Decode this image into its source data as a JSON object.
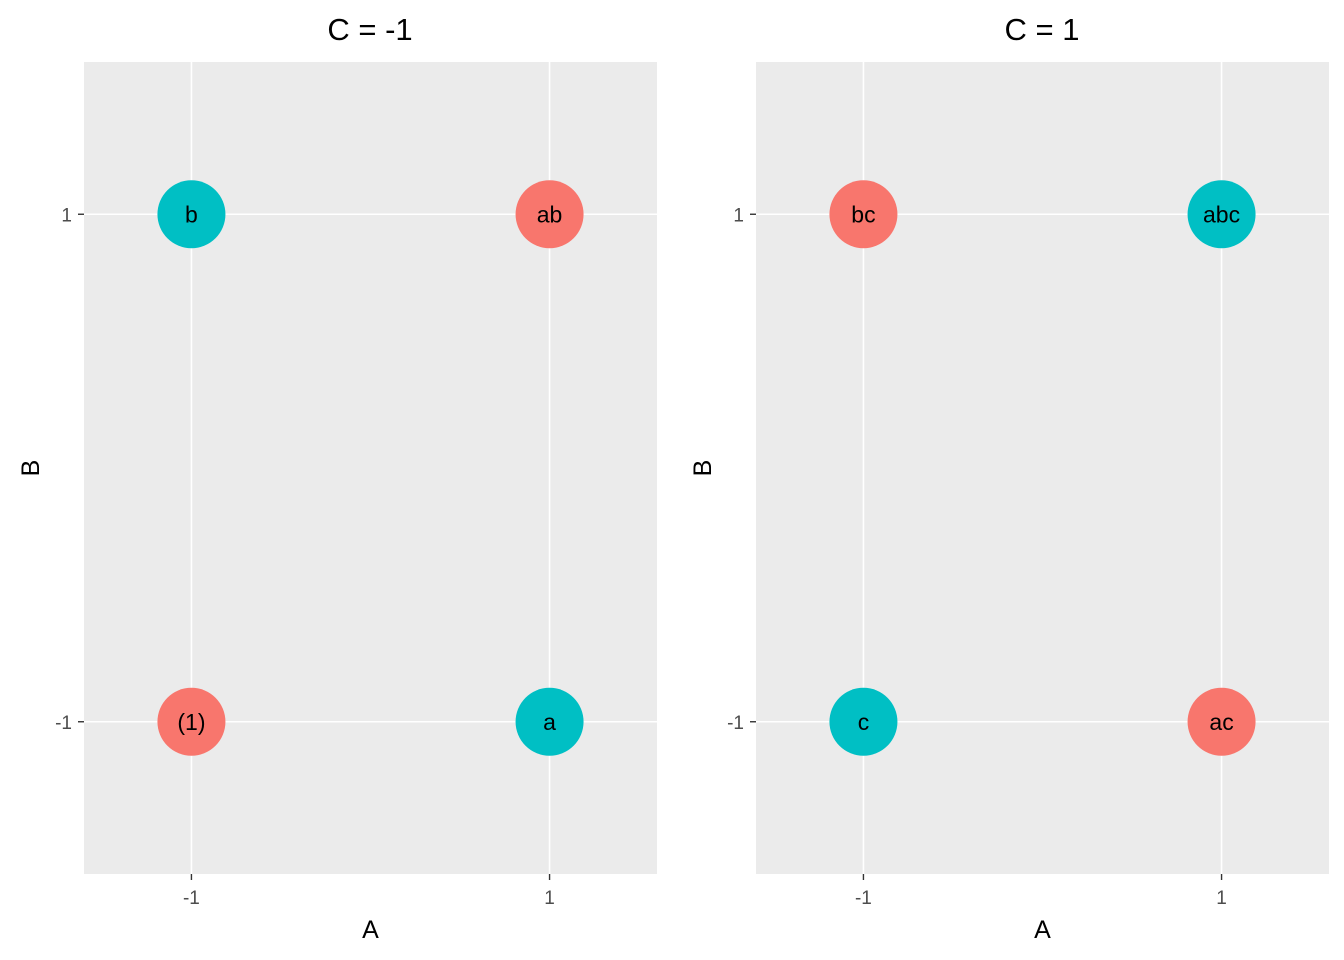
{
  "chart_data": [
    {
      "type": "scatter",
      "title": "C = -1",
      "xlabel": "A",
      "ylabel": "B",
      "x_ticks": [
        "-1",
        "1"
      ],
      "y_ticks": [
        "-1",
        "1"
      ],
      "xlim": [
        -1.6,
        1.6
      ],
      "ylim": [
        -1.6,
        1.6
      ],
      "grid": true,
      "legend": "none",
      "points": [
        {
          "x": -1,
          "y": 1,
          "label": "b",
          "color": "#00BFC4"
        },
        {
          "x": 1,
          "y": 1,
          "label": "ab",
          "color": "#F8766D"
        },
        {
          "x": -1,
          "y": -1,
          "label": "(1)",
          "color": "#F8766D"
        },
        {
          "x": 1,
          "y": -1,
          "label": "a",
          "color": "#00BFC4"
        }
      ]
    },
    {
      "type": "scatter",
      "title": "C = 1",
      "xlabel": "A",
      "ylabel": "B",
      "x_ticks": [
        "-1",
        "1"
      ],
      "y_ticks": [
        "-1",
        "1"
      ],
      "xlim": [
        -1.6,
        1.6
      ],
      "ylim": [
        -1.6,
        1.6
      ],
      "grid": true,
      "legend": "none",
      "points": [
        {
          "x": -1,
          "y": 1,
          "label": "bc",
          "color": "#F8766D"
        },
        {
          "x": 1,
          "y": 1,
          "label": "abc",
          "color": "#00BFC4"
        },
        {
          "x": -1,
          "y": -1,
          "label": "c",
          "color": "#00BFC4"
        },
        {
          "x": 1,
          "y": -1,
          "label": "ac",
          "color": "#F8766D"
        }
      ]
    }
  ],
  "colors": {
    "panel_background": "#EBEBEB",
    "grid": "#FFFFFF",
    "series_red": "#F8766D",
    "series_teal": "#00BFC4"
  }
}
